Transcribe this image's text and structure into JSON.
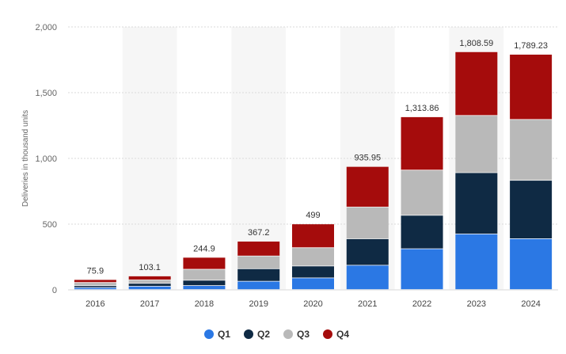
{
  "colors": {
    "Q1": "#2b78e4",
    "Q2": "#0f2a44",
    "Q3": "#b9b9b9",
    "Q4": "#a50c0c",
    "band": "#f6f6f6",
    "grid": "#d9d9d9"
  },
  "chart_data": {
    "type": "bar",
    "stacked": true,
    "title": "",
    "xlabel": "",
    "ylabel": "Deliveries in thousand units",
    "ylim": [
      0,
      2000
    ],
    "yticks": [
      0,
      500,
      1000,
      1500,
      2000
    ],
    "ytick_labels": [
      "0",
      "500",
      "1,000",
      "1,500",
      "2,000"
    ],
    "grid": true,
    "legend_position": "bottom-center",
    "categories": [
      "2016",
      "2017",
      "2018",
      "2019",
      "2020",
      "2021",
      "2022",
      "2023",
      "2024"
    ],
    "series": [
      {
        "name": "Q1",
        "values": [
          14.8,
          25.0,
          29.98,
          63.0,
          88.4,
          184.8,
          310.05,
          422.88,
          386.81
        ]
      },
      {
        "name": "Q2",
        "values": [
          14.4,
          22.0,
          40.74,
          95.2,
          90.65,
          201.25,
          254.7,
          466.14,
          443.96
        ]
      },
      {
        "name": "Q3",
        "values": [
          24.5,
          26.15,
          83.5,
          97.0,
          139.3,
          241.3,
          343.83,
          435.06,
          462.89
        ]
      },
      {
        "name": "Q4",
        "values": [
          22.2,
          29.95,
          90.68,
          112.0,
          180.65,
          308.6,
          405.28,
          484.51,
          495.57
        ]
      }
    ],
    "totals": [
      "75.9",
      "103.1",
      "244.9",
      "367.2",
      "499",
      "935.95",
      "1,313.86",
      "1,808.59",
      "1,789.23"
    ]
  }
}
